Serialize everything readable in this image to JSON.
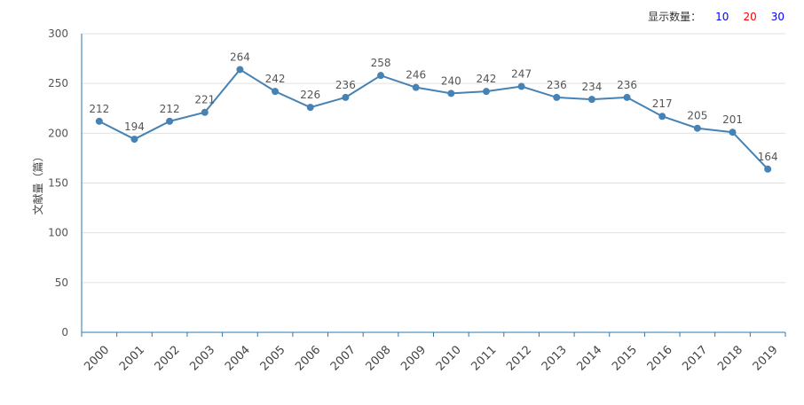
{
  "display_control": {
    "label": "显示数量：",
    "options": [
      {
        "label": "10",
        "color": "#0000ff"
      },
      {
        "label": "20",
        "color": "#ff0000"
      },
      {
        "label": "30",
        "color": "#0000ff"
      }
    ]
  },
  "chart_data": {
    "type": "line",
    "ylabel": "文献量（篇）",
    "xlabel": "",
    "ylim": [
      0,
      300
    ],
    "yticks": [
      0,
      50,
      100,
      150,
      200,
      250,
      300
    ],
    "grid": "horizontal",
    "categories": [
      "2000",
      "2001",
      "2002",
      "2003",
      "2004",
      "2005",
      "2006",
      "2007",
      "2008",
      "2009",
      "2010",
      "2011",
      "2012",
      "2013",
      "2014",
      "2015",
      "2016",
      "2017",
      "2018",
      "2019"
    ],
    "series": [
      {
        "values": [
          212,
          194,
          212,
          221,
          264,
          242,
          226,
          236,
          258,
          246,
          240,
          242,
          247,
          236,
          234,
          236,
          217,
          205,
          201,
          164
        ],
        "color": "#4682b4"
      }
    ]
  }
}
